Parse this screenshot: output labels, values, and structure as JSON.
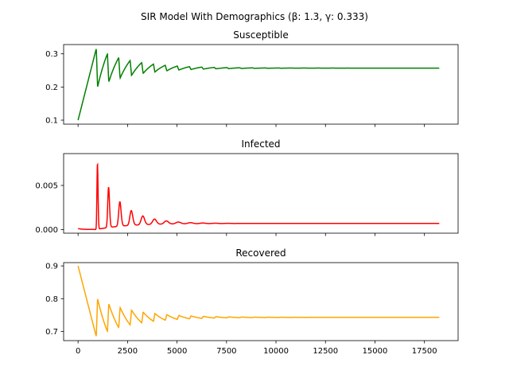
{
  "figure": {
    "suptitle": "SIR Model With Demographics (β: 1.3, γ: 0.333)"
  },
  "chart_data": [
    {
      "type": "line",
      "title": "Susceptible",
      "color": "#008000",
      "xlim": [
        -730,
        19200
      ],
      "ylim": [
        0.088,
        0.328
      ],
      "yticks": [
        {
          "v": 0.1,
          "label": "0.1"
        },
        {
          "v": 0.2,
          "label": "0.2"
        },
        {
          "v": 0.3,
          "label": "0.3"
        }
      ],
      "xticks": [
        {
          "v": 0,
          "label": ""
        },
        {
          "v": 2500,
          "label": ""
        },
        {
          "v": 5000,
          "label": ""
        },
        {
          "v": 7500,
          "label": ""
        },
        {
          "v": 10000,
          "label": ""
        },
        {
          "v": 12500,
          "label": ""
        },
        {
          "v": 15000,
          "label": ""
        },
        {
          "v": 17500,
          "label": ""
        }
      ],
      "model": {
        "kind": "damped",
        "start": 0.1,
        "eq": 0.257,
        "first_peak_t": 920,
        "first_peak": 0.316,
        "first_trough": 0.208,
        "period0": 560,
        "period_growth": 0.0125,
        "decay": 0.00055,
        "x_end": 18250
      }
    },
    {
      "type": "line",
      "title": "Infected",
      "color": "#ff0000",
      "xlim": [
        -730,
        19200
      ],
      "ylim": [
        -0.0004,
        0.0086
      ],
      "yticks": [
        {
          "v": 0.0,
          "label": "0.000"
        },
        {
          "v": 0.005,
          "label": "0.005"
        }
      ],
      "xticks": [
        {
          "v": 0,
          "label": ""
        },
        {
          "v": 2500,
          "label": ""
        },
        {
          "v": 5000,
          "label": ""
        },
        {
          "v": 7500,
          "label": ""
        },
        {
          "v": 10000,
          "label": ""
        },
        {
          "v": 12500,
          "label": ""
        },
        {
          "v": 15000,
          "label": ""
        },
        {
          "v": 17500,
          "label": ""
        }
      ],
      "model": {
        "kind": "spikes",
        "start": 0.0001,
        "eq": 0.0007,
        "first_peak_t": 980,
        "first_peak": 0.0082,
        "period0": 560,
        "period_growth": 0.0125,
        "decay": 0.00055,
        "x_end": 18250
      }
    },
    {
      "type": "line",
      "title": "Recovered",
      "color": "#ffa500",
      "xlim": [
        -730,
        19200
      ],
      "ylim": [
        0.672,
        0.91
      ],
      "yticks": [
        {
          "v": 0.7,
          "label": "0.7"
        },
        {
          "v": 0.8,
          "label": "0.8"
        },
        {
          "v": 0.9,
          "label": "0.9"
        }
      ],
      "xticks": [
        {
          "v": 0,
          "label": "0"
        },
        {
          "v": 2500,
          "label": "2500"
        },
        {
          "v": 5000,
          "label": "5000"
        },
        {
          "v": 7500,
          "label": "7500"
        },
        {
          "v": 10000,
          "label": "10000"
        },
        {
          "v": 12500,
          "label": "12500"
        },
        {
          "v": 15000,
          "label": "15000"
        },
        {
          "v": 17500,
          "label": "17500"
        }
      ],
      "model": {
        "kind": "damped",
        "start": 0.9,
        "eq": 0.743,
        "first_peak_t": 920,
        "first_peak": 0.684,
        "first_trough": 0.792,
        "period0": 560,
        "period_growth": 0.0125,
        "decay": 0.00055,
        "x_end": 18250
      }
    }
  ]
}
